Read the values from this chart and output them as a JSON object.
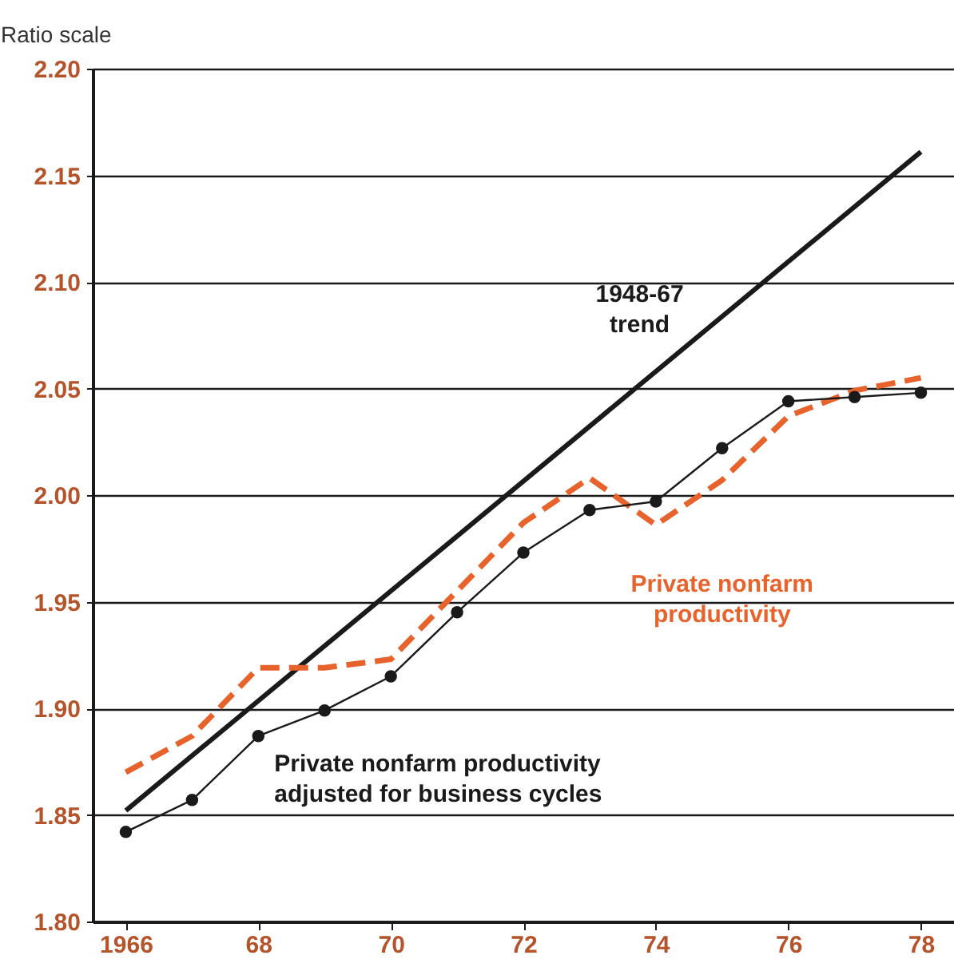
{
  "chart_data": {
    "type": "line",
    "ylabel": "Ratio scale",
    "xlim": [
      1965.5,
      1978.5
    ],
    "ylim": [
      1.8,
      2.2
    ],
    "xticks": [
      {
        "value": 1966,
        "label": "1966"
      },
      {
        "value": 1968,
        "label": "68"
      },
      {
        "value": 1970,
        "label": "70"
      },
      {
        "value": 1972,
        "label": "72"
      },
      {
        "value": 1974,
        "label": "74"
      },
      {
        "value": 1976,
        "label": "76"
      },
      {
        "value": 1978,
        "label": "78"
      }
    ],
    "yticks": [
      {
        "value": 1.8,
        "label": "1.80"
      },
      {
        "value": 1.85,
        "label": "1.85"
      },
      {
        "value": 1.9,
        "label": "1.90"
      },
      {
        "value": 1.95,
        "label": "1.95"
      },
      {
        "value": 2.0,
        "label": "2.00"
      },
      {
        "value": 2.05,
        "label": "2.05"
      },
      {
        "value": 2.1,
        "label": "2.10"
      },
      {
        "value": 2.15,
        "label": "2.15"
      },
      {
        "value": 2.2,
        "label": "2.20"
      }
    ],
    "grid": "y",
    "series": [
      {
        "name": "1948-67 trend",
        "color": "#1a1a1a",
        "x": [
          1966,
          1978
        ],
        "values": [
          1.852,
          2.161
        ],
        "line_style": "solid"
      },
      {
        "name": "Private nonfarm productivity",
        "color": "#e8622c",
        "x": [
          1966,
          1967,
          1968,
          1969,
          1970,
          1971,
          1972,
          1973,
          1974,
          1975,
          1976,
          1977,
          1978
        ],
        "values": [
          1.87,
          1.887,
          1.919,
          1.919,
          1.923,
          1.955,
          1.987,
          2.008,
          1.986,
          2.007,
          2.037,
          2.049,
          2.055
        ],
        "line_style": "dashed"
      },
      {
        "name": "Private nonfarm productivity adjusted for business cycles",
        "color": "#1a1a1a",
        "x": [
          1966,
          1967,
          1968,
          1969,
          1970,
          1971,
          1972,
          1973,
          1974,
          1975,
          1976,
          1977,
          1978
        ],
        "values": [
          1.842,
          1.857,
          1.887,
          1.899,
          1.915,
          1.945,
          1.973,
          1.993,
          1.997,
          2.022,
          2.044,
          2.046,
          2.048
        ],
        "line_style": "solid",
        "marker": "circle"
      }
    ]
  }
}
